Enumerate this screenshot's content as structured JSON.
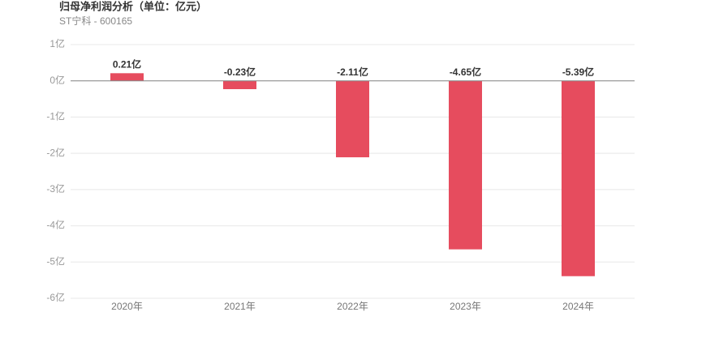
{
  "chart_data": {
    "type": "bar",
    "title": "归母净利润分析（单位：亿元）",
    "subtitle": "ST宁科 - 600165",
    "categories": [
      "2020年",
      "2021年",
      "2022年",
      "2023年",
      "2024年"
    ],
    "values": [
      0.21,
      -0.23,
      -2.11,
      -4.65,
      -5.39
    ],
    "value_labels": [
      "0.21亿",
      "-0.23亿",
      "-2.11亿",
      "-4.65亿",
      "-5.39亿"
    ],
    "color": "#e64c5e",
    "ylim": [
      -6,
      1
    ],
    "yticks": [
      {
        "value": 1,
        "label": "1亿"
      },
      {
        "value": 0,
        "label": "0亿"
      },
      {
        "value": -1,
        "label": "-1亿"
      },
      {
        "value": -2,
        "label": "-2亿"
      },
      {
        "value": -3,
        "label": "-3亿"
      },
      {
        "value": -4,
        "label": "-4亿"
      },
      {
        "value": -5,
        "label": "-5亿"
      },
      {
        "value": -6,
        "label": "-6亿"
      }
    ],
    "grid": true
  }
}
